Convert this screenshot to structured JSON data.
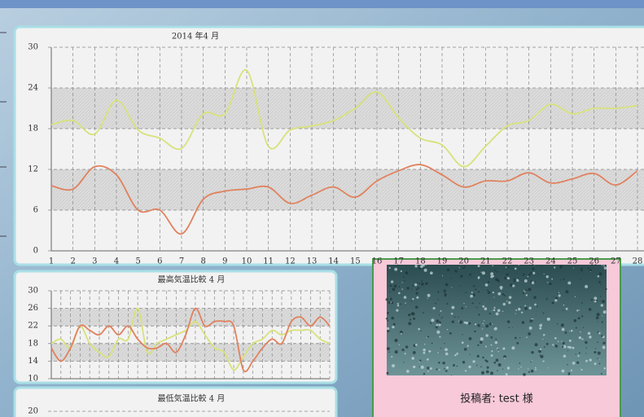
{
  "chart_data": [
    {
      "type": "line",
      "title": "2014 年4 月",
      "x": [
        1,
        2,
        3,
        4,
        5,
        6,
        7,
        8,
        9,
        10,
        11,
        12,
        13,
        14,
        15,
        16,
        17,
        18,
        19,
        20,
        21,
        22,
        23,
        24,
        25,
        26,
        27,
        28
      ],
      "xlim": [
        1,
        28.3
      ],
      "xticks": [
        1,
        2,
        3,
        4,
        5,
        6,
        7,
        8,
        9,
        10,
        11,
        12,
        13,
        14,
        15,
        16,
        17,
        18,
        19,
        20,
        21,
        22,
        23,
        24,
        25,
        26,
        27,
        28
      ],
      "ylim": [
        0,
        30
      ],
      "yticks": [
        0,
        6,
        12,
        18,
        24,
        30
      ],
      "grid": true,
      "series": [
        {
          "color": "#d8e27a",
          "values": [
            18.6,
            19.2,
            17.2,
            22.2,
            17.8,
            16.6,
            15.1,
            20.2,
            20.2,
            26.6,
            15.4,
            17.8,
            18.4,
            19.2,
            21,
            23.4,
            19.6,
            16.6,
            15.6,
            12.4,
            15.4,
            18.4,
            19.2,
            21.6,
            20.2,
            21,
            21,
            21.4
          ]
        },
        {
          "color": "#e0825e",
          "values": [
            9.6,
            9.1,
            12.4,
            11.2,
            6,
            6,
            2.5,
            7.6,
            8.8,
            9.1,
            9.4,
            7,
            8.2,
            9.4,
            7.9,
            10.3,
            11.8,
            12.7,
            11.2,
            9.4,
            10.3,
            10.3,
            11.5,
            10,
            10.6,
            11.4,
            9.7,
            11.8
          ]
        }
      ]
    },
    {
      "type": "line",
      "title": "最高気温比較 4 月",
      "ylim": [
        10,
        30
      ],
      "yticks": [
        10,
        14,
        18,
        22,
        26,
        30
      ],
      "grid": true,
      "series": [
        {
          "color": "#d8e27a",
          "values": [
            18,
            19,
            17,
            22,
            18,
            16,
            15,
            19,
            19,
            26,
            16,
            18,
            19,
            20,
            21,
            23,
            20,
            17,
            16,
            12,
            15,
            18,
            19,
            21,
            20,
            21,
            21,
            21,
            19,
            18
          ]
        },
        {
          "color": "#e0825e",
          "values": [
            17,
            14,
            17,
            22,
            21,
            20,
            22,
            20,
            22,
            19,
            17,
            17,
            18,
            16,
            20,
            26,
            22,
            23,
            23,
            22,
            12,
            14,
            17,
            19,
            18,
            23,
            24,
            22,
            24,
            22
          ]
        }
      ]
    },
    {
      "type": "line",
      "title": "最低気温比較 4 月",
      "yticks": [
        20
      ],
      "grid": true,
      "series": []
    }
  ],
  "photo_panel": {
    "caption": "投稿者: test 様"
  }
}
